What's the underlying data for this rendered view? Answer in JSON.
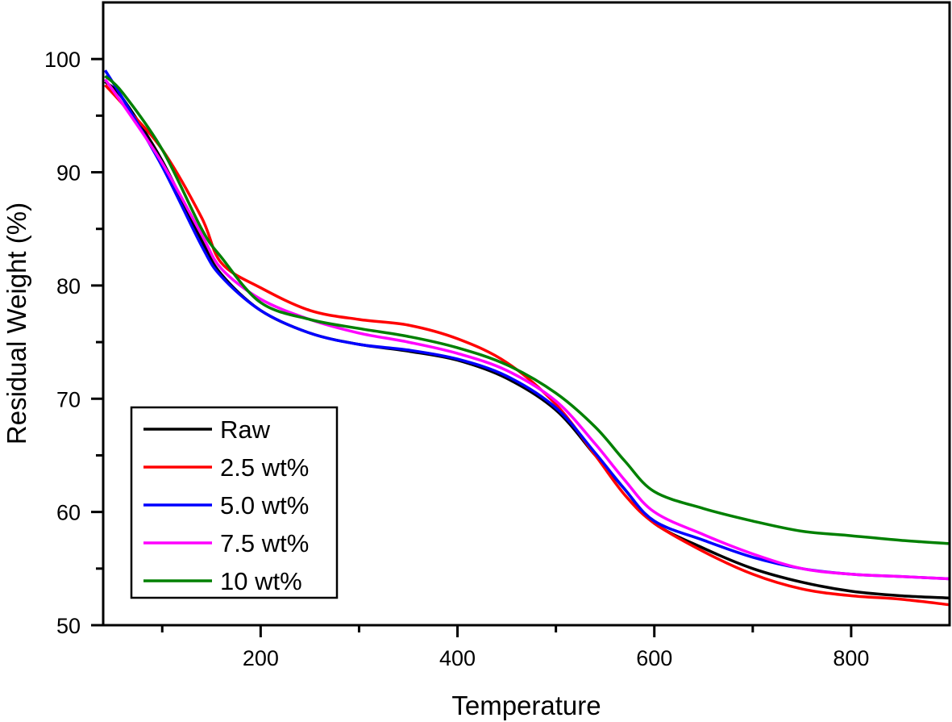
{
  "chart_data": {
    "type": "line",
    "title": "",
    "xlabel": "Temperature",
    "ylabel": "Residual Weight (%)",
    "xlim": [
      40,
      900
    ],
    "ylim": [
      50,
      105
    ],
    "x_major_ticks": [
      200,
      400,
      600,
      800
    ],
    "x_minor_ticks": [
      100,
      300,
      500,
      700
    ],
    "y_major_ticks": [
      50,
      60,
      70,
      80,
      90,
      100
    ],
    "y_minor_ticks": [
      55,
      65,
      75,
      85,
      95
    ],
    "x_tick_labels": [
      "200",
      "400",
      "600",
      "800"
    ],
    "y_tick_labels": [
      "50",
      "60",
      "70",
      "80",
      "90",
      "100"
    ],
    "grid": false,
    "legend_position": "bottom-left",
    "x": [
      42,
      60,
      100,
      140,
      160,
      200,
      250,
      300,
      350,
      400,
      450,
      500,
      540,
      570,
      600,
      650,
      700,
      750,
      800,
      850,
      900
    ],
    "series": [
      {
        "name": "Raw",
        "color": "#000000",
        "values": [
          98.0,
          96.5,
          91.0,
          84.0,
          81.0,
          77.8,
          75.8,
          74.8,
          74.2,
          73.4,
          71.8,
          69.0,
          65.0,
          62.0,
          59.0,
          56.8,
          55.0,
          53.8,
          53.0,
          52.6,
          52.4
        ]
      },
      {
        "name": "2.5 wt%",
        "color": "#ff0000",
        "values": [
          97.7,
          96.0,
          92.0,
          86.0,
          82.0,
          79.8,
          77.8,
          77.0,
          76.5,
          75.3,
          73.2,
          69.5,
          65.0,
          61.5,
          59.0,
          56.5,
          54.5,
          53.2,
          52.6,
          52.3,
          51.8
        ]
      },
      {
        "name": "5.0 wt%",
        "color": "#0000ff",
        "values": [
          99.0,
          96.5,
          90.5,
          83.5,
          80.8,
          77.8,
          75.8,
          74.8,
          74.3,
          73.5,
          72.0,
          69.2,
          65.2,
          62.0,
          59.2,
          57.5,
          56.0,
          55.0,
          54.5,
          54.3,
          54.1
        ]
      },
      {
        "name": "7.5 wt%",
        "color": "#ff00ff",
        "values": [
          98.2,
          96.0,
          90.8,
          84.5,
          81.5,
          78.8,
          77.0,
          75.8,
          75.0,
          74.0,
          72.5,
          69.8,
          66.0,
          62.8,
          60.0,
          58.0,
          56.3,
          55.0,
          54.5,
          54.3,
          54.1
        ]
      },
      {
        "name": "10 wt%",
        "color": "#008000",
        "values": [
          98.5,
          97.0,
          92.0,
          85.0,
          82.5,
          78.5,
          77.0,
          76.2,
          75.5,
          74.5,
          73.0,
          70.5,
          67.5,
          64.5,
          61.8,
          60.3,
          59.2,
          58.3,
          57.9,
          57.5,
          57.2
        ]
      }
    ]
  }
}
